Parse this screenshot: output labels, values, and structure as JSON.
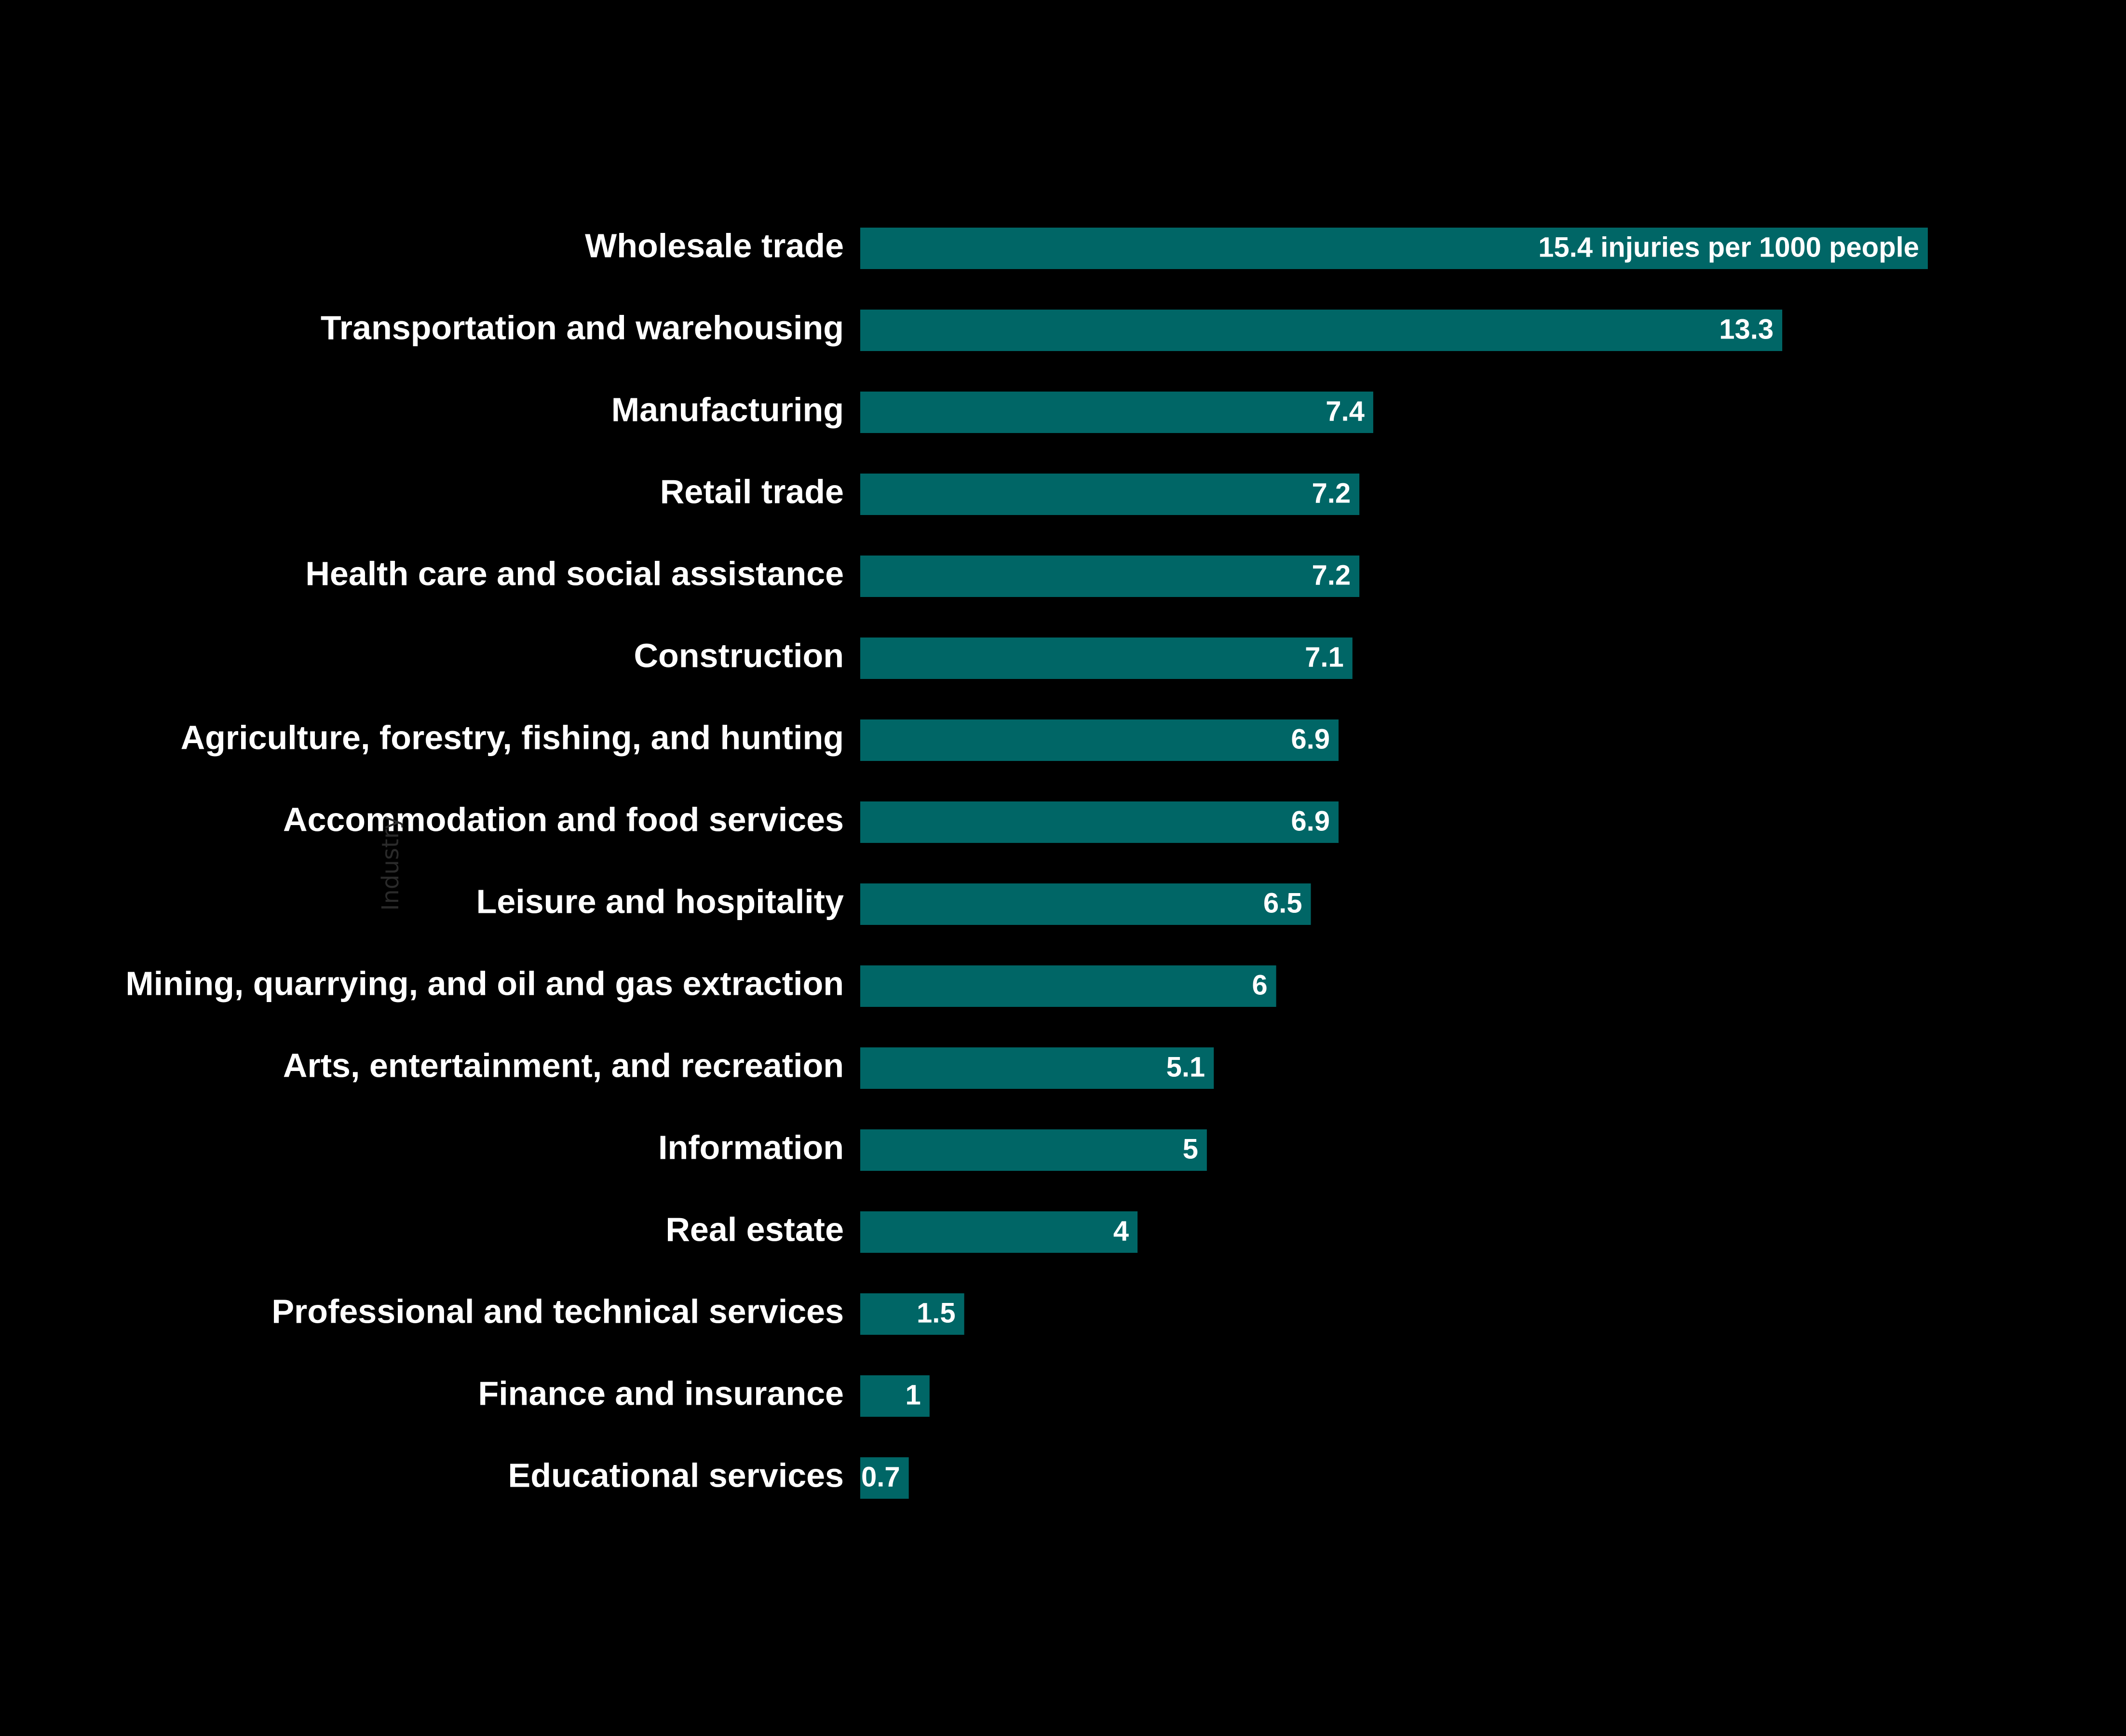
{
  "chart_data": {
    "type": "bar",
    "orientation": "horizontal",
    "title": "",
    "xlabel": "",
    "ylabel": "Industry",
    "categories": [
      "Wholesale trade",
      "Transportation and warehousing",
      "Manufacturing",
      "Retail trade",
      "Health care and social assistance",
      "Construction",
      "Agriculture, forestry, fishing, and hunting",
      "Accommodation and food services",
      "Leisure and hospitality",
      "Mining, quarrying, and oil and gas extraction",
      "Arts, entertainment, and recreation",
      "Information",
      "Real estate",
      "Professional and technical services",
      "Finance and insurance",
      "Educational services"
    ],
    "values": [
      15.4,
      13.3,
      7.4,
      7.2,
      7.2,
      7.1,
      6.9,
      6.9,
      6.5,
      6,
      5.1,
      5,
      4,
      1.5,
      1,
      0.7
    ],
    "value_labels": [
      "15.4 injuries per 1000 people",
      "13.3",
      "7.4",
      "7.2",
      "7.2",
      "7.1",
      "6.9",
      "6.9",
      "6.5",
      "6",
      "5.1",
      "5",
      "4",
      "1.5",
      "1",
      "0.7"
    ],
    "xlim": [
      0,
      15.4
    ],
    "grid": false,
    "legend": "none",
    "colors": {
      "bar": "#006666",
      "background": "#000000",
      "text": "#ffffff",
      "axis_title": "#2a2a2a"
    }
  }
}
